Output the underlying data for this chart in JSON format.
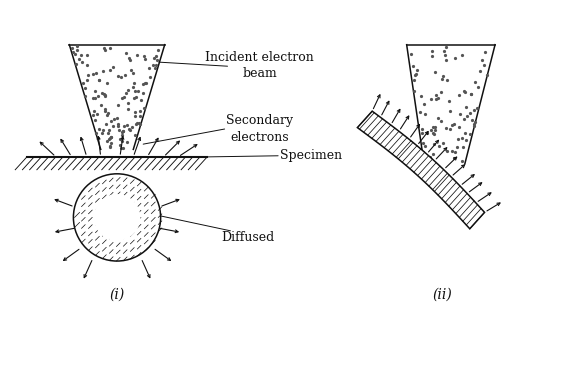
{
  "bg_color": "#ffffff",
  "line_color": "#111111",
  "dot_color": "#555555",
  "fig_width": 5.83,
  "fig_height": 3.86,
  "dpi": 100,
  "label_incident": "Incident electron\nbeam",
  "label_secondary": "Secondary\nelectrons",
  "label_specimen": "Specimen",
  "label_diffused": "Diffused",
  "label_i": "(i)",
  "label_ii": "(ii)",
  "text_color": "#111111",
  "font_size": 9.0
}
